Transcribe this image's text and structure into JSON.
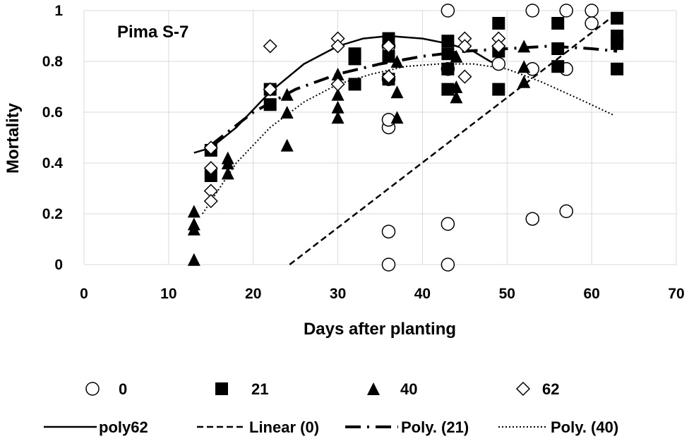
{
  "chart_data": {
    "type": "scatter",
    "title": "",
    "annotation": "Pima S-7",
    "xlabel": "Days after planting",
    "ylabel": "Mortality",
    "xlim": [
      0,
      70
    ],
    "ylim": [
      0,
      1
    ],
    "xticks": [
      0,
      10,
      20,
      30,
      40,
      50,
      60,
      70
    ],
    "yticks": [
      0,
      0.2,
      0.4,
      0.6,
      0.8,
      1
    ],
    "xtick_labels": [
      "0",
      "10",
      "20",
      "30",
      "40",
      "50",
      "60",
      "70"
    ],
    "ytick_labels": [
      "0",
      "0.2",
      "0.4",
      "0.6",
      "0.8",
      "1"
    ],
    "grid": true,
    "legend_position": "bottom",
    "series": [
      {
        "name": "0",
        "marker": "circle-open",
        "points": [
          [
            36,
            0.0
          ],
          [
            36,
            0.13
          ],
          [
            36,
            0.54
          ],
          [
            36,
            0.57
          ],
          [
            36,
            0.73
          ],
          [
            36,
            0.86
          ],
          [
            43,
            0.0
          ],
          [
            43,
            0.16
          ],
          [
            43,
            0.77
          ],
          [
            43,
            1.0
          ],
          [
            49,
            0.79
          ],
          [
            53,
            0.18
          ],
          [
            53,
            0.77
          ],
          [
            53,
            1.0
          ],
          [
            57,
            0.21
          ],
          [
            57,
            0.77
          ],
          [
            57,
            1.0
          ],
          [
            60,
            0.95
          ],
          [
            60,
            1.0
          ]
        ]
      },
      {
        "name": "21",
        "marker": "square-filled",
        "points": [
          [
            15,
            0.45
          ],
          [
            15,
            0.35
          ],
          [
            22,
            0.69
          ],
          [
            22,
            0.63
          ],
          [
            32,
            0.83
          ],
          [
            32,
            0.81
          ],
          [
            32,
            0.71
          ],
          [
            36,
            0.89
          ],
          [
            36,
            0.82
          ],
          [
            36,
            0.73
          ],
          [
            43,
            0.88
          ],
          [
            43,
            0.83
          ],
          [
            43,
            0.77
          ],
          [
            43,
            0.69
          ],
          [
            49,
            0.95
          ],
          [
            49,
            0.84
          ],
          [
            49,
            0.69
          ],
          [
            56,
            0.95
          ],
          [
            56,
            0.85
          ],
          [
            56,
            0.78
          ],
          [
            63,
            0.97
          ],
          [
            63,
            0.9
          ],
          [
            63,
            0.87
          ],
          [
            63,
            0.77
          ]
        ]
      },
      {
        "name": "40",
        "marker": "triangle-filled",
        "points": [
          [
            13,
            0.21
          ],
          [
            13,
            0.16
          ],
          [
            13,
            0.14
          ],
          [
            13,
            0.02
          ],
          [
            17,
            0.42
          ],
          [
            17,
            0.4
          ],
          [
            17,
            0.36
          ],
          [
            24,
            0.67
          ],
          [
            24,
            0.6
          ],
          [
            24,
            0.47
          ],
          [
            30,
            0.75
          ],
          [
            30,
            0.67
          ],
          [
            30,
            0.62
          ],
          [
            30,
            0.58
          ],
          [
            37,
            0.8
          ],
          [
            37,
            0.68
          ],
          [
            37,
            0.58
          ],
          [
            44,
            0.82
          ],
          [
            44,
            0.7
          ],
          [
            44,
            0.66
          ],
          [
            52,
            0.86
          ],
          [
            52,
            0.78
          ],
          [
            52,
            0.72
          ]
        ]
      },
      {
        "name": "62",
        "marker": "diamond-open",
        "points": [
          [
            15,
            0.46
          ],
          [
            15,
            0.38
          ],
          [
            15,
            0.29
          ],
          [
            15,
            0.25
          ],
          [
            22,
            0.86
          ],
          [
            22,
            0.69
          ],
          [
            30,
            0.89
          ],
          [
            30,
            0.86
          ],
          [
            30,
            0.71
          ],
          [
            36,
            0.86
          ],
          [
            36,
            0.74
          ],
          [
            45,
            0.89
          ],
          [
            45,
            0.86
          ],
          [
            45,
            0.74
          ],
          [
            49,
            0.89
          ],
          [
            49,
            0.86
          ]
        ]
      }
    ],
    "trendlines": [
      {
        "name": "poly62",
        "style": "solid",
        "points": [
          [
            13,
            0.44
          ],
          [
            15,
            0.46
          ],
          [
            18,
            0.54
          ],
          [
            22,
            0.68
          ],
          [
            26,
            0.79
          ],
          [
            30,
            0.86
          ],
          [
            33,
            0.89
          ],
          [
            36,
            0.9
          ],
          [
            40,
            0.89
          ],
          [
            43,
            0.87
          ],
          [
            46,
            0.84
          ],
          [
            48,
            0.8
          ],
          [
            49,
            0.79
          ]
        ]
      },
      {
        "name": "Linear (0)",
        "style": "dashed",
        "points": [
          [
            24.3,
            0.0
          ],
          [
            63,
            0.99
          ]
        ]
      },
      {
        "name": "Poly. (21)",
        "style": "dash-dot",
        "points": [
          [
            15,
            0.47
          ],
          [
            20,
            0.6
          ],
          [
            25,
            0.69
          ],
          [
            30,
            0.75
          ],
          [
            35,
            0.79
          ],
          [
            40,
            0.82
          ],
          [
            45,
            0.84
          ],
          [
            50,
            0.85
          ],
          [
            55,
            0.86
          ],
          [
            60,
            0.85
          ],
          [
            63,
            0.84
          ]
        ]
      },
      {
        "name": "Poly. (40)",
        "style": "dotted",
        "points": [
          [
            14,
            0.2
          ],
          [
            18,
            0.4
          ],
          [
            22,
            0.54
          ],
          [
            26,
            0.64
          ],
          [
            30,
            0.71
          ],
          [
            34,
            0.75
          ],
          [
            38,
            0.78
          ],
          [
            42,
            0.79
          ],
          [
            46,
            0.79
          ],
          [
            50,
            0.77
          ],
          [
            54,
            0.72
          ],
          [
            58,
            0.66
          ],
          [
            62.5,
            0.59
          ]
        ]
      }
    ]
  }
}
